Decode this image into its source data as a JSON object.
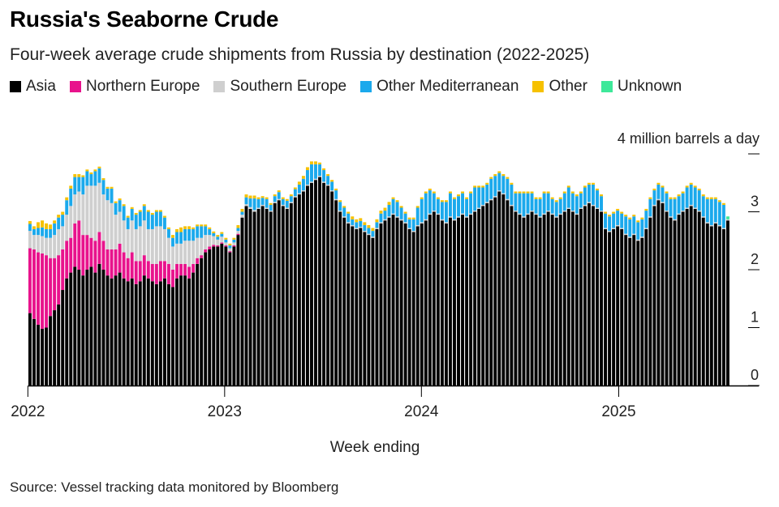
{
  "title": "Russia's Seaborne Crude",
  "subtitle": "Four-week average crude shipments from Russia by destination (2022-2025)",
  "source": "Source: Vessel tracking data monitored by Bloomberg",
  "legend": [
    {
      "name": "Asia",
      "color": "#000000"
    },
    {
      "name": "Northern Europe",
      "color": "#e8138c"
    },
    {
      "name": "Southern Europe",
      "color": "#cfcfcf"
    },
    {
      "name": "Other Mediterranean",
      "color": "#1ba9ec"
    },
    {
      "name": "Other",
      "color": "#f6c100"
    },
    {
      "name": "Unknown",
      "color": "#3ee89a"
    }
  ],
  "chart_data": {
    "type": "bar",
    "stacked": true,
    "xlabel": "Week ending",
    "ylabel": "4 million barrels a day",
    "ylim": [
      0,
      4
    ],
    "yticks": [
      0,
      1,
      2,
      3
    ],
    "xticks": [
      "2022",
      "2023",
      "2024",
      "2025"
    ],
    "date_start": "2022-01-02",
    "date_end": "2025-07-27",
    "grid": false,
    "legend_position": "top",
    "series": [
      {
        "name": "Asia",
        "color": "#000000",
        "values": [
          1.25,
          1.15,
          1.05,
          0.98,
          1.0,
          1.2,
          1.3,
          1.4,
          1.65,
          1.85,
          1.95,
          2.05,
          2.0,
          1.9,
          2.0,
          2.05,
          1.95,
          2.1,
          2.0,
          1.9,
          1.85,
          1.9,
          1.95,
          1.85,
          1.8,
          1.85,
          1.75,
          1.8,
          1.9,
          1.85,
          1.8,
          1.75,
          1.8,
          1.85,
          1.75,
          1.7,
          1.85,
          1.9,
          1.9,
          1.85,
          1.95,
          2.1,
          2.2,
          2.3,
          2.35,
          2.4,
          2.4,
          2.45,
          2.4,
          2.3,
          2.4,
          2.6,
          2.9,
          3.1,
          3.05,
          3.0,
          3.05,
          3.1,
          3.05,
          3.0,
          3.15,
          3.2,
          3.1,
          3.05,
          3.15,
          3.25,
          3.3,
          3.35,
          3.45,
          3.5,
          3.55,
          3.6,
          3.5,
          3.45,
          3.35,
          3.2,
          3.0,
          2.9,
          2.8,
          2.75,
          2.7,
          2.72,
          2.65,
          2.6,
          2.55,
          2.7,
          2.8,
          2.85,
          2.9,
          2.95,
          2.9,
          2.85,
          2.8,
          2.7,
          2.65,
          2.75,
          2.8,
          2.85,
          2.95,
          3.0,
          2.95,
          2.85,
          2.8,
          2.9,
          2.85,
          2.9,
          2.95,
          2.9,
          2.95,
          3.0,
          3.05,
          3.1,
          3.15,
          3.2,
          3.25,
          3.35,
          3.3,
          3.2,
          3.1,
          3.0,
          2.95,
          2.9,
          2.95,
          3.0,
          2.95,
          2.9,
          2.95,
          3.0,
          2.95,
          2.9,
          2.95,
          3.0,
          3.05,
          3.0,
          2.95,
          3.05,
          3.1,
          3.15,
          3.1,
          3.05,
          3.0,
          2.7,
          2.65,
          2.7,
          2.75,
          2.7,
          2.6,
          2.55,
          2.6,
          2.5,
          2.55,
          2.7,
          2.9,
          3.1,
          3.2,
          3.15,
          3.0,
          2.9,
          2.85,
          2.95,
          3.0,
          3.05,
          3.1,
          3.05,
          3.0,
          2.9,
          2.8,
          2.75,
          2.8,
          2.75,
          2.7,
          2.85
        ]
      },
      {
        "name": "Northern Europe",
        "color": "#e8138c",
        "values": [
          1.12,
          1.2,
          1.25,
          1.3,
          1.25,
          1.0,
          0.9,
          0.85,
          0.7,
          0.65,
          0.6,
          0.75,
          0.85,
          0.7,
          0.6,
          0.5,
          0.55,
          0.55,
          0.5,
          0.45,
          0.5,
          0.45,
          0.5,
          0.45,
          0.4,
          0.45,
          0.4,
          0.35,
          0.35,
          0.3,
          0.3,
          0.35,
          0.35,
          0.3,
          0.35,
          0.3,
          0.25,
          0.2,
          0.2,
          0.2,
          0.15,
          0.1,
          0.05,
          0.05,
          0.05,
          0.03,
          0.02,
          0.02,
          0.02,
          0.02,
          0.02,
          0.02,
          0.0,
          0.0,
          0.0,
          0.0,
          0.0,
          0.0,
          0.0,
          0.0,
          0.0,
          0.0,
          0.0,
          0.0,
          0.0,
          0.0,
          0.0,
          0.0,
          0.0,
          0.0,
          0.0,
          0.0,
          0.0,
          0.0,
          0.0,
          0.0,
          0.0,
          0.0,
          0.0,
          0.0,
          0.0,
          0.0,
          0.0,
          0.0,
          0.0,
          0.0,
          0.0,
          0.0,
          0.0,
          0.0,
          0.0,
          0.0,
          0.0,
          0.0,
          0.0,
          0.0,
          0.0,
          0.0,
          0.0,
          0.0,
          0.0,
          0.0,
          0.0,
          0.0,
          0.0,
          0.0,
          0.0,
          0.0,
          0.0,
          0.0,
          0.0,
          0.0,
          0.0,
          0.0,
          0.0,
          0.0,
          0.0,
          0.0,
          0.0,
          0.0,
          0.0,
          0.0,
          0.0,
          0.0,
          0.0,
          0.0,
          0.0,
          0.0,
          0.0,
          0.0,
          0.0,
          0.0,
          0.0,
          0.0,
          0.0,
          0.0,
          0.0,
          0.0,
          0.0,
          0.0,
          0.0,
          0.0,
          0.0,
          0.0,
          0.0,
          0.0,
          0.0,
          0.0,
          0.0,
          0.0,
          0.0,
          0.0,
          0.0,
          0.0,
          0.0,
          0.0,
          0.0,
          0.0,
          0.0,
          0.0,
          0.0,
          0.0,
          0.0,
          0.0,
          0.0,
          0.0,
          0.0,
          0.0,
          0.0,
          0.0,
          0.0,
          0.0,
          0.0,
          0.0,
          0.0
        ]
      },
      {
        "name": "Southern Europe",
        "color": "#cfcfcf",
        "values": [
          0.3,
          0.25,
          0.3,
          0.3,
          0.3,
          0.35,
          0.4,
          0.45,
          0.4,
          0.45,
          0.55,
          0.5,
          0.5,
          0.7,
          0.85,
          0.9,
          0.95,
          0.85,
          0.8,
          0.85,
          0.8,
          0.6,
          0.55,
          0.55,
          0.5,
          0.55,
          0.55,
          0.6,
          0.6,
          0.55,
          0.6,
          0.65,
          0.6,
          0.55,
          0.45,
          0.4,
          0.35,
          0.35,
          0.4,
          0.45,
          0.4,
          0.35,
          0.3,
          0.25,
          0.2,
          0.15,
          0.1,
          0.1,
          0.05,
          0.05,
          0.05,
          0.05,
          0.05,
          0.03,
          0.03,
          0.03,
          0.02,
          0.02,
          0.02,
          0.02,
          0.02,
          0.02,
          0.02,
          0.02,
          0.02,
          0.02,
          0.02,
          0.02,
          0.02,
          0.02,
          0.02,
          0.02,
          0.02,
          0.02,
          0.02,
          0.02,
          0.02,
          0.02,
          0.02,
          0.02,
          0.02,
          0.02,
          0.02,
          0.02,
          0.02,
          0.02,
          0.02,
          0.02,
          0.02,
          0.02,
          0.02,
          0.02,
          0.02,
          0.02,
          0.02,
          0.02,
          0.02,
          0.02,
          0.02,
          0.02,
          0.02,
          0.02,
          0.02,
          0.02,
          0.02,
          0.02,
          0.02,
          0.02,
          0.02,
          0.02,
          0.02,
          0.02,
          0.02,
          0.02,
          0.02,
          0.02,
          0.02,
          0.02,
          0.02,
          0.02,
          0.02,
          0.02,
          0.02,
          0.02,
          0.02,
          0.02,
          0.02,
          0.02,
          0.02,
          0.02,
          0.02,
          0.02,
          0.02,
          0.02,
          0.02,
          0.02,
          0.02,
          0.02,
          0.02,
          0.02,
          0.02,
          0.02,
          0.02,
          0.02,
          0.02,
          0.02,
          0.02,
          0.02,
          0.02,
          0.02,
          0.02,
          0.02,
          0.02,
          0.02,
          0.02,
          0.02,
          0.02,
          0.02,
          0.02,
          0.02,
          0.02,
          0.02,
          0.02,
          0.02,
          0.02,
          0.02,
          0.02,
          0.02,
          0.02,
          0.02,
          0.02,
          0.02
        ]
      },
      {
        "name": "Other Mediterranean",
        "color": "#1ba9ec",
        "values": [
          0.12,
          0.1,
          0.12,
          0.15,
          0.15,
          0.15,
          0.2,
          0.2,
          0.2,
          0.25,
          0.3,
          0.3,
          0.25,
          0.3,
          0.25,
          0.2,
          0.25,
          0.25,
          0.25,
          0.2,
          0.25,
          0.2,
          0.2,
          0.25,
          0.2,
          0.2,
          0.25,
          0.25,
          0.25,
          0.3,
          0.25,
          0.25,
          0.25,
          0.2,
          0.15,
          0.15,
          0.2,
          0.2,
          0.2,
          0.2,
          0.2,
          0.2,
          0.2,
          0.15,
          0.1,
          0.05,
          0.05,
          0.05,
          0.05,
          0.05,
          0.05,
          0.05,
          0.05,
          0.12,
          0.15,
          0.2,
          0.15,
          0.12,
          0.15,
          0.1,
          0.1,
          0.12,
          0.1,
          0.12,
          0.1,
          0.12,
          0.15,
          0.2,
          0.25,
          0.3,
          0.25,
          0.2,
          0.2,
          0.15,
          0.15,
          0.15,
          0.15,
          0.15,
          0.15,
          0.1,
          0.1,
          0.1,
          0.1,
          0.1,
          0.1,
          0.1,
          0.15,
          0.15,
          0.2,
          0.25,
          0.25,
          0.2,
          0.15,
          0.15,
          0.2,
          0.3,
          0.4,
          0.45,
          0.4,
          0.3,
          0.25,
          0.3,
          0.35,
          0.4,
          0.35,
          0.35,
          0.35,
          0.3,
          0.35,
          0.4,
          0.35,
          0.3,
          0.3,
          0.35,
          0.35,
          0.3,
          0.3,
          0.35,
          0.35,
          0.3,
          0.35,
          0.4,
          0.35,
          0.3,
          0.25,
          0.3,
          0.35,
          0.3,
          0.25,
          0.25,
          0.25,
          0.3,
          0.35,
          0.3,
          0.3,
          0.25,
          0.3,
          0.3,
          0.35,
          0.3,
          0.25,
          0.25,
          0.25,
          0.25,
          0.25,
          0.25,
          0.3,
          0.3,
          0.3,
          0.3,
          0.3,
          0.3,
          0.3,
          0.25,
          0.25,
          0.25,
          0.3,
          0.3,
          0.35,
          0.3,
          0.3,
          0.35,
          0.35,
          0.35,
          0.35,
          0.35,
          0.4,
          0.45,
          0.4,
          0.4,
          0.4
        ]
      },
      {
        "name": "Other",
        "color": "#f6c100",
        "values": [
          0.05,
          0.05,
          0.1,
          0.12,
          0.1,
          0.08,
          0.05,
          0.05,
          0.05,
          0.05,
          0.05,
          0.05,
          0.05,
          0.03,
          0.03,
          0.03,
          0.03,
          0.03,
          0.03,
          0.03,
          0.03,
          0.03,
          0.03,
          0.03,
          0.03,
          0.03,
          0.03,
          0.03,
          0.03,
          0.03,
          0.03,
          0.03,
          0.03,
          0.03,
          0.03,
          0.05,
          0.05,
          0.08,
          0.05,
          0.05,
          0.03,
          0.03,
          0.03,
          0.03,
          0.03,
          0.03,
          0.03,
          0.03,
          0.03,
          0.03,
          0.03,
          0.05,
          0.05,
          0.05,
          0.05,
          0.05,
          0.03,
          0.03,
          0.03,
          0.03,
          0.03,
          0.03,
          0.03,
          0.03,
          0.03,
          0.03,
          0.05,
          0.05,
          0.05,
          0.05,
          0.05,
          0.03,
          0.03,
          0.03,
          0.03,
          0.03,
          0.03,
          0.03,
          0.03,
          0.05,
          0.05,
          0.05,
          0.05,
          0.05,
          0.05,
          0.05,
          0.05,
          0.05,
          0.05,
          0.03,
          0.03,
          0.03,
          0.03,
          0.03,
          0.03,
          0.03,
          0.03,
          0.03,
          0.03,
          0.03,
          0.03,
          0.03,
          0.03,
          0.03,
          0.03,
          0.03,
          0.03,
          0.03,
          0.03,
          0.03,
          0.03,
          0.03,
          0.03,
          0.03,
          0.03,
          0.03,
          0.03,
          0.03,
          0.03,
          0.03,
          0.03,
          0.03,
          0.03,
          0.03,
          0.03,
          0.03,
          0.03,
          0.03,
          0.03,
          0.03,
          0.03,
          0.03,
          0.03,
          0.03,
          0.03,
          0.03,
          0.03,
          0.03,
          0.03,
          0.03,
          0.03,
          0.03,
          0.03,
          0.03,
          0.03,
          0.03,
          0.03,
          0.03,
          0.03,
          0.03,
          0.03,
          0.03,
          0.03,
          0.03,
          0.03,
          0.03,
          0.03,
          0.03,
          0.03,
          0.03,
          0.03,
          0.03,
          0.03,
          0.03,
          0.03,
          0.03,
          0.03,
          0.03,
          0.03,
          0.03,
          0.03
        ]
      },
      {
        "name": "Unknown",
        "color": "#3ee89a",
        "values": [
          0.0,
          0.0,
          0.0,
          0.0,
          0.0,
          0.0,
          0.0,
          0.0,
          0.0,
          0.0,
          0.0,
          0.0,
          0.0,
          0.0,
          0.0,
          0.0,
          0.0,
          0.0,
          0.0,
          0.0,
          0.0,
          0.0,
          0.0,
          0.0,
          0.0,
          0.0,
          0.0,
          0.0,
          0.0,
          0.0,
          0.0,
          0.0,
          0.0,
          0.0,
          0.0,
          0.0,
          0.0,
          0.0,
          0.0,
          0.0,
          0.0,
          0.0,
          0.0,
          0.0,
          0.0,
          0.0,
          0.0,
          0.0,
          0.0,
          0.0,
          0.0,
          0.0,
          0.0,
          0.0,
          0.0,
          0.0,
          0.0,
          0.0,
          0.0,
          0.0,
          0.0,
          0.0,
          0.0,
          0.0,
          0.0,
          0.0,
          0.0,
          0.0,
          0.0,
          0.0,
          0.0,
          0.0,
          0.0,
          0.0,
          0.0,
          0.0,
          0.0,
          0.0,
          0.0,
          0.0,
          0.0,
          0.0,
          0.0,
          0.0,
          0.0,
          0.0,
          0.0,
          0.0,
          0.0,
          0.0,
          0.0,
          0.0,
          0.0,
          0.0,
          0.0,
          0.0,
          0.0,
          0.0,
          0.0,
          0.0,
          0.0,
          0.0,
          0.0,
          0.0,
          0.0,
          0.0,
          0.0,
          0.0,
          0.0,
          0.0,
          0.0,
          0.0,
          0.0,
          0.0,
          0.0,
          0.0,
          0.0,
          0.0,
          0.0,
          0.0,
          0.0,
          0.0,
          0.0,
          0.0,
          0.0,
          0.0,
          0.0,
          0.0,
          0.0,
          0.0,
          0.0,
          0.0,
          0.0,
          0.0,
          0.0,
          0.0,
          0.0,
          0.0,
          0.0,
          0.0,
          0.0,
          0.0,
          0.0,
          0.0,
          0.0,
          0.0,
          0.0,
          0.0,
          0.0,
          0.0,
          0.0,
          0.0,
          0.0,
          0.0,
          0.0,
          0.0,
          0.0,
          0.0,
          0.0,
          0.0,
          0.0,
          0.0,
          0.0,
          0.0,
          0.0,
          0.0,
          0.0,
          0.0,
          0.0,
          0.0,
          0.0,
          0.05
        ]
      }
    ]
  }
}
